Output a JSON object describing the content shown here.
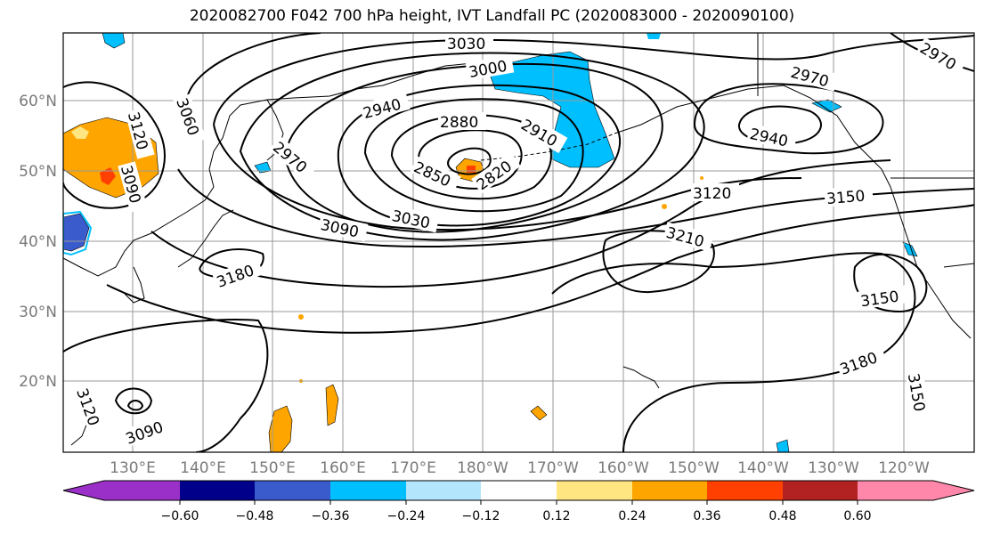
{
  "title": "2020082700 F042 700 hPa height, IVT Landfall PC (2020083000 - 2020090100)",
  "lat_labels": [
    "60°N",
    "50°N",
    "40°N",
    "30°N",
    "20°N"
  ],
  "lon_labels": [
    "130°E",
    "140°E",
    "150°E",
    "160°E",
    "170°E",
    "180°W",
    "170°W",
    "160°W",
    "150°W",
    "140°W",
    "130°W",
    "120°W"
  ],
  "contour_labels": [
    "3030",
    "3000",
    "2970",
    "2970",
    "2940",
    "2880",
    "2910",
    "2940",
    "2970",
    "2850",
    "2820",
    "3060",
    "3120",
    "3090",
    "3090",
    "3030",
    "3120",
    "3150",
    "3210",
    "3180",
    "3150",
    "3180",
    "3150",
    "3120",
    "3090"
  ],
  "colorbar": {
    "colors": [
      "#9b30c8",
      "#00008b",
      "#3a5bcc",
      "#00bfff",
      "#b3e5fc",
      "#ffffff",
      "#ffe680",
      "#ffa500",
      "#ff4000",
      "#b22222",
      "#ff88aa"
    ],
    "tick_labels": [
      "−0.60",
      "−0.48",
      "−0.36",
      "−0.24",
      "−0.12",
      "0.12",
      "0.24",
      "0.36",
      "0.48",
      "0.60"
    ]
  }
}
